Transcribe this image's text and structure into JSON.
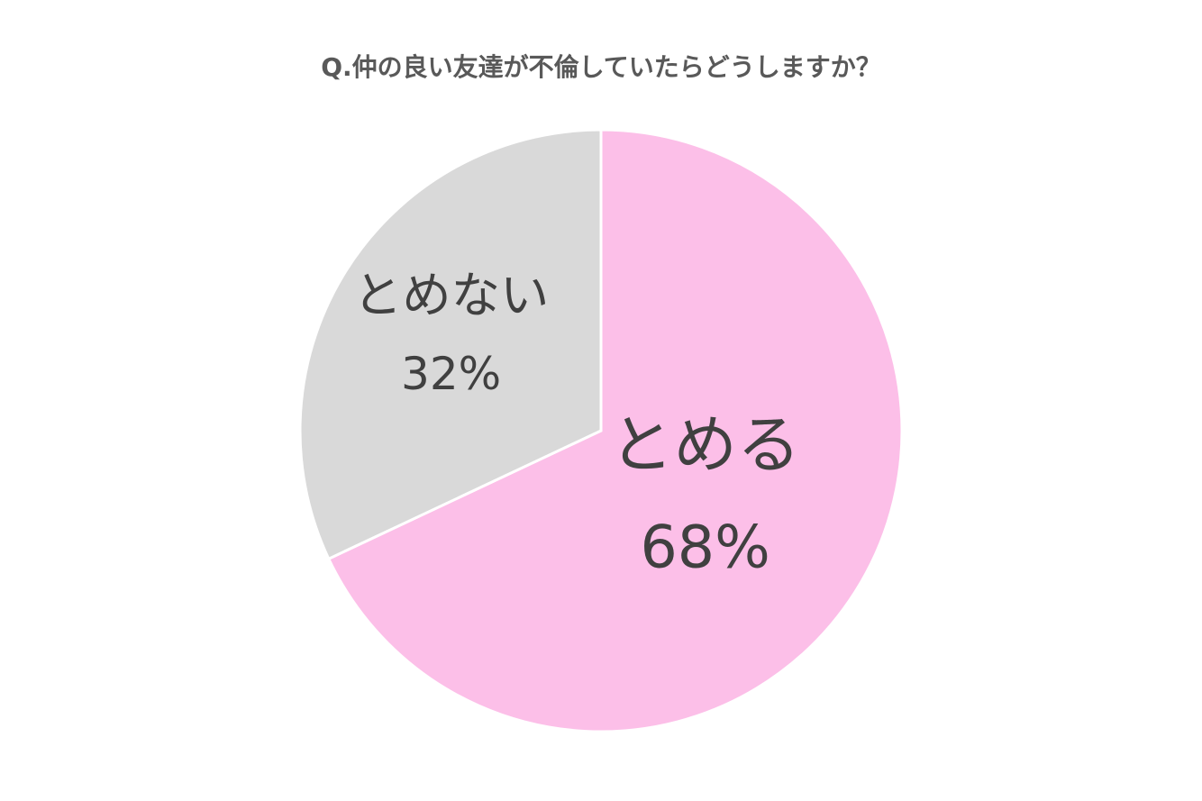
{
  "chart_data": {
    "type": "pie",
    "title": "Q.仲の良い友達が不倫していたらどうしますか？",
    "categories": [
      "とめる",
      "とめない"
    ],
    "values": [
      68,
      32
    ],
    "value_labels": [
      "68%",
      "32%"
    ],
    "colors": [
      "#fcbfe8",
      "#d9d9d9"
    ]
  }
}
